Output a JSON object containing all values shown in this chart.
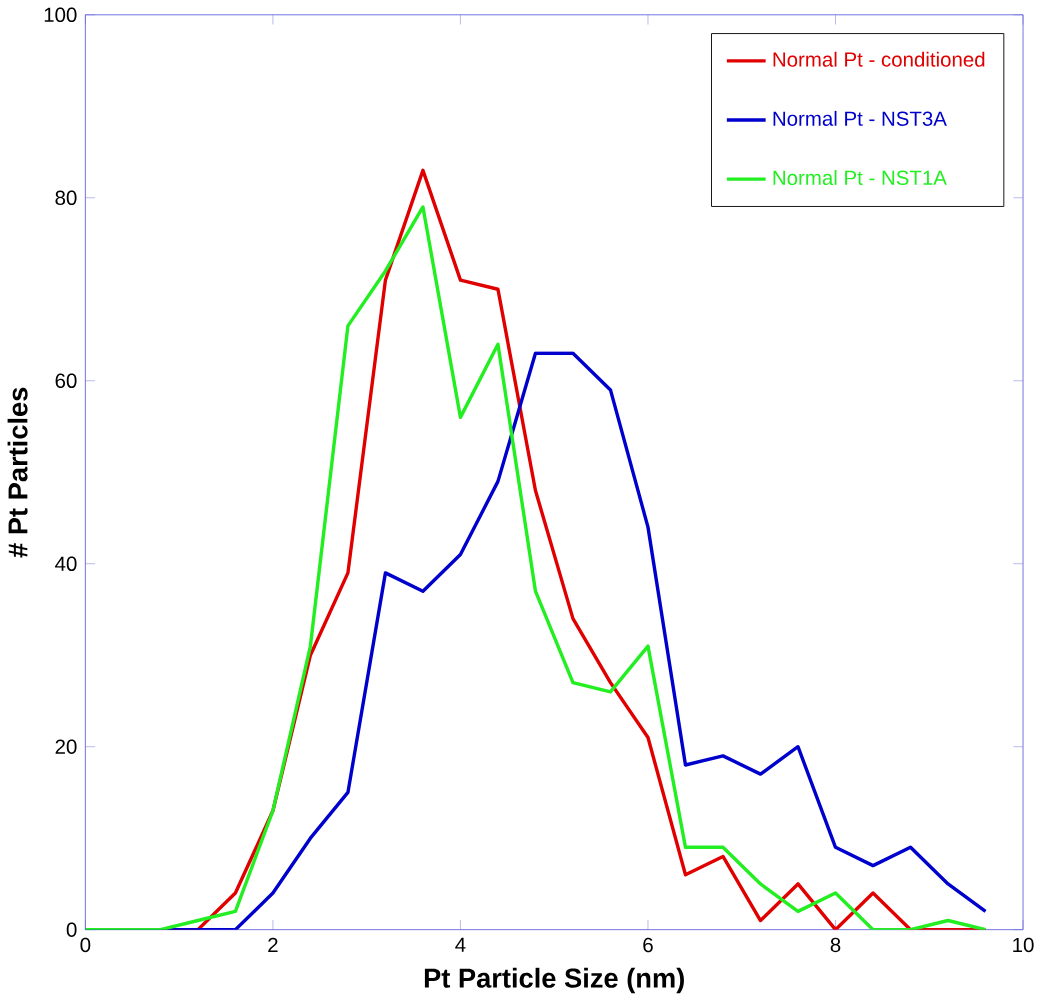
{
  "chart_data": {
    "type": "line",
    "xlabel": "Pt Particle Size (nm)",
    "ylabel": "# Pt Particles",
    "x": [
      0,
      0.4,
      0.8,
      1.2,
      1.6,
      2.0,
      2.4,
      2.8,
      3.2,
      3.6,
      4.0,
      4.4,
      4.8,
      5.2,
      5.6,
      6.0,
      6.4,
      6.8,
      7.2,
      7.6,
      8.0,
      8.4,
      8.8,
      9.2,
      9.6
    ],
    "series": [
      {
        "name": "Normal Pt - conditioned",
        "color": "#e00000",
        "values": [
          null,
          null,
          0,
          0,
          4,
          13,
          30,
          39,
          71,
          83,
          71,
          70,
          48,
          34,
          27,
          21,
          6,
          8,
          1,
          5,
          0,
          4,
          0,
          0,
          0
        ]
      },
      {
        "name": "Normal Pt - NST3A",
        "color": "#0000cc",
        "values": [
          0,
          0,
          0,
          0,
          0,
          4,
          10,
          15,
          39,
          37,
          41,
          49,
          63,
          63,
          59,
          44,
          18,
          19,
          17,
          20,
          9,
          7,
          9,
          5,
          2
        ]
      },
      {
        "name": "Normal Pt - NST1A",
        "color": "#22ee22",
        "values": [
          0,
          0,
          0,
          1,
          2,
          13,
          31,
          66,
          72,
          79,
          56,
          64,
          37,
          27,
          26,
          31,
          9,
          9,
          5,
          2,
          4,
          0,
          0,
          1,
          0
        ]
      }
    ],
    "xlim": [
      0,
      10
    ],
    "ylim": [
      0,
      100
    ],
    "xticks": [
      0,
      2,
      4,
      6,
      8,
      10
    ],
    "yticks": [
      0,
      20,
      40,
      60,
      80,
      100
    ],
    "grid": false,
    "legend": "top right",
    "marker": "none",
    "line_style": "solid"
  }
}
